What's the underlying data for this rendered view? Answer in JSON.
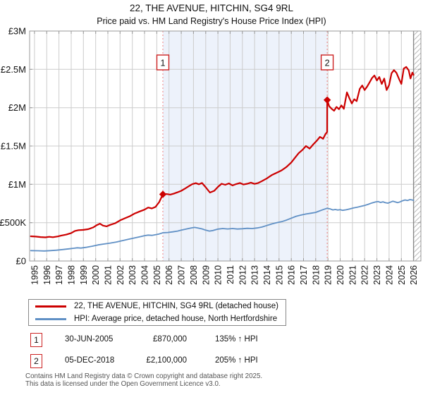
{
  "header": {
    "title": "22, THE AVENUE, HITCHIN, SG4 9RL",
    "subtitle": "Price paid vs. HM Land Registry's House Price Index (HPI)"
  },
  "colors": {
    "red": "#cc0000",
    "blue": "#6090c5",
    "grid": "#cccccc",
    "border": "#999999",
    "shade": "#edf2fb",
    "hatch": "#b8b8b8",
    "hatch_edge": "#8a8a8a",
    "dashed": "#f08080",
    "marker_box": "#cc2222"
  },
  "chart_data": {
    "type": "line",
    "title": "22, THE AVENUE, HITCHIN, SG4 9RL",
    "subtitle": "Price paid vs. HM Land Registry's House Price Index (HPI)",
    "units": "GBP_thousands",
    "x_min": 1994.6,
    "x_max": 2026.6,
    "y_max_k": 3000,
    "grid": true,
    "legend_position": "bottom",
    "x_tick_years": [
      1995,
      1996,
      1997,
      1998,
      1999,
      2000,
      2001,
      2002,
      2003,
      2004,
      2005,
      2006,
      2007,
      2008,
      2009,
      2010,
      2011,
      2012,
      2013,
      2014,
      2015,
      2016,
      2017,
      2018,
      2019,
      2020,
      2021,
      2022,
      2023,
      2024,
      2025,
      2026
    ],
    "y_ticks": [
      {
        "v": 0,
        "label": "£0"
      },
      {
        "v": 500,
        "label": "£500K"
      },
      {
        "v": 1000,
        "label": "£1M"
      },
      {
        "v": 1500,
        "label": "£1.5M"
      },
      {
        "v": 2000,
        "label": "£2M"
      },
      {
        "v": 2500,
        "label": "£2.5M"
      },
      {
        "v": 3000,
        "label": "£3M"
      }
    ],
    "shade": {
      "from": 2005.5,
      "to": 2018.94
    },
    "hatch_from": 2026.0,
    "series": [
      {
        "key": "property-price-line",
        "name": "22, THE AVENUE, HITCHIN, SG4 9RL (detached house)",
        "color": "#cc0000",
        "width": 2.2,
        "points": [
          [
            1994.7,
            322
          ],
          [
            1995.1,
            318
          ],
          [
            1995.5,
            312
          ],
          [
            1995.9,
            308
          ],
          [
            1996.2,
            316
          ],
          [
            1996.5,
            310
          ],
          [
            1996.9,
            320
          ],
          [
            1997.2,
            332
          ],
          [
            1997.6,
            344
          ],
          [
            1998,
            364
          ],
          [
            1998.3,
            392
          ],
          [
            1998.6,
            402
          ],
          [
            1999,
            406
          ],
          [
            1999.4,
            415
          ],
          [
            1999.8,
            438
          ],
          [
            2000.1,
            468
          ],
          [
            2000.35,
            487
          ],
          [
            2000.6,
            462
          ],
          [
            2000.9,
            452
          ],
          [
            2001.2,
            472
          ],
          [
            2001.6,
            492
          ],
          [
            2002,
            530
          ],
          [
            2002.4,
            558
          ],
          [
            2002.8,
            584
          ],
          [
            2003.2,
            620
          ],
          [
            2003.6,
            646
          ],
          [
            2004,
            670
          ],
          [
            2004.3,
            698
          ],
          [
            2004.6,
            686
          ],
          [
            2004.9,
            706
          ],
          [
            2005.2,
            768
          ],
          [
            2005.5,
            870
          ],
          [
            2005.8,
            873
          ],
          [
            2006.1,
            866
          ],
          [
            2006.4,
            880
          ],
          [
            2006.7,
            896
          ],
          [
            2007,
            916
          ],
          [
            2007.3,
            944
          ],
          [
            2007.6,
            974
          ],
          [
            2007.9,
            1002
          ],
          [
            2008.2,
            1016
          ],
          [
            2008.45,
            1000
          ],
          [
            2008.7,
            1018
          ],
          [
            2009,
            962
          ],
          [
            2009.35,
            893
          ],
          [
            2009.7,
            916
          ],
          [
            2010,
            966
          ],
          [
            2010.3,
            1008
          ],
          [
            2010.6,
            994
          ],
          [
            2010.9,
            1012
          ],
          [
            2011.2,
            986
          ],
          [
            2011.5,
            1004
          ],
          [
            2011.8,
            1018
          ],
          [
            2012.1,
            998
          ],
          [
            2012.4,
            1008
          ],
          [
            2012.7,
            1022
          ],
          [
            2013,
            1006
          ],
          [
            2013.3,
            1018
          ],
          [
            2013.6,
            1042
          ],
          [
            2014,
            1078
          ],
          [
            2014.4,
            1120
          ],
          [
            2014.8,
            1150
          ],
          [
            2015.2,
            1182
          ],
          [
            2015.6,
            1226
          ],
          [
            2016,
            1286
          ],
          [
            2016.3,
            1346
          ],
          [
            2016.6,
            1406
          ],
          [
            2016.9,
            1448
          ],
          [
            2017.2,
            1500
          ],
          [
            2017.5,
            1466
          ],
          [
            2017.8,
            1522
          ],
          [
            2018.1,
            1572
          ],
          [
            2018.35,
            1620
          ],
          [
            2018.6,
            1594
          ],
          [
            2018.8,
            1656
          ],
          [
            2018.93,
            1682
          ],
          [
            2018.94,
            2100
          ],
          [
            2019.1,
            2020
          ],
          [
            2019.3,
            1985
          ],
          [
            2019.5,
            1960
          ],
          [
            2019.7,
            2010
          ],
          [
            2019.9,
            1980
          ],
          [
            2020.1,
            2030
          ],
          [
            2020.3,
            1985
          ],
          [
            2020.55,
            2200
          ],
          [
            2020.75,
            2125
          ],
          [
            2020.95,
            2055
          ],
          [
            2021.15,
            2110
          ],
          [
            2021.35,
            2085
          ],
          [
            2021.6,
            2245
          ],
          [
            2021.8,
            2290
          ],
          [
            2022,
            2230
          ],
          [
            2022.2,
            2275
          ],
          [
            2022.4,
            2330
          ],
          [
            2022.6,
            2385
          ],
          [
            2022.8,
            2420
          ],
          [
            2023,
            2355
          ],
          [
            2023.2,
            2400
          ],
          [
            2023.4,
            2310
          ],
          [
            2023.6,
            2380
          ],
          [
            2023.8,
            2230
          ],
          [
            2024,
            2295
          ],
          [
            2024.2,
            2450
          ],
          [
            2024.4,
            2490
          ],
          [
            2024.6,
            2455
          ],
          [
            2024.8,
            2380
          ],
          [
            2025,
            2310
          ],
          [
            2025.2,
            2510
          ],
          [
            2025.4,
            2532
          ],
          [
            2025.6,
            2488
          ],
          [
            2025.75,
            2382
          ],
          [
            2025.9,
            2458
          ],
          [
            2026,
            2428
          ]
        ]
      },
      {
        "key": "hpi-line",
        "name": "HPI: Average price, detached house, North Hertfordshire",
        "color": "#6090c5",
        "width": 1.8,
        "points": [
          [
            1994.7,
            135
          ],
          [
            1995.3,
            133
          ],
          [
            1995.8,
            131
          ],
          [
            1996.3,
            135
          ],
          [
            1996.8,
            141
          ],
          [
            1997.3,
            149
          ],
          [
            1997.8,
            158
          ],
          [
            1998.2,
            166
          ],
          [
            1998.5,
            172
          ],
          [
            1998.8,
            168
          ],
          [
            1999.2,
            178
          ],
          [
            1999.7,
            192
          ],
          [
            2000.2,
            210
          ],
          [
            2000.7,
            222
          ],
          [
            2001.2,
            234
          ],
          [
            2001.7,
            248
          ],
          [
            2002.2,
            266
          ],
          [
            2002.7,
            284
          ],
          [
            2003.2,
            302
          ],
          [
            2003.7,
            318
          ],
          [
            2004,
            330
          ],
          [
            2004.3,
            338
          ],
          [
            2004.6,
            334
          ],
          [
            2004.9,
            342
          ],
          [
            2005.2,
            352
          ],
          [
            2005.5,
            368
          ],
          [
            2005.9,
            372
          ],
          [
            2006.3,
            380
          ],
          [
            2006.7,
            390
          ],
          [
            2007,
            402
          ],
          [
            2007.4,
            416
          ],
          [
            2007.8,
            430
          ],
          [
            2008.1,
            438
          ],
          [
            2008.4,
            429
          ],
          [
            2008.7,
            419
          ],
          [
            2009,
            402
          ],
          [
            2009.3,
            390
          ],
          [
            2009.6,
            398
          ],
          [
            2010,
            416
          ],
          [
            2010.4,
            423
          ],
          [
            2010.8,
            418
          ],
          [
            2011.2,
            423
          ],
          [
            2011.6,
            417
          ],
          [
            2012,
            421
          ],
          [
            2012.4,
            426
          ],
          [
            2012.8,
            423
          ],
          [
            2013.2,
            431
          ],
          [
            2013.6,
            443
          ],
          [
            2014,
            463
          ],
          [
            2014.4,
            483
          ],
          [
            2014.8,
            499
          ],
          [
            2015.2,
            513
          ],
          [
            2015.6,
            533
          ],
          [
            2016,
            559
          ],
          [
            2016.4,
            583
          ],
          [
            2016.8,
            599
          ],
          [
            2017.2,
            613
          ],
          [
            2017.6,
            623
          ],
          [
            2018,
            634
          ],
          [
            2018.3,
            652
          ],
          [
            2018.6,
            670
          ],
          [
            2018.94,
            688
          ],
          [
            2019.2,
            678
          ],
          [
            2019.4,
            666
          ],
          [
            2019.6,
            672
          ],
          [
            2019.8,
            664
          ],
          [
            2020,
            670
          ],
          [
            2020.2,
            661
          ],
          [
            2020.5,
            668
          ],
          [
            2020.8,
            680
          ],
          [
            2021.1,
            692
          ],
          [
            2021.4,
            701
          ],
          [
            2021.7,
            713
          ],
          [
            2022,
            724
          ],
          [
            2022.3,
            740
          ],
          [
            2022.6,
            757
          ],
          [
            2022.9,
            770
          ],
          [
            2023.1,
            776
          ],
          [
            2023.3,
            764
          ],
          [
            2023.5,
            772
          ],
          [
            2023.7,
            760
          ],
          [
            2023.9,
            755
          ],
          [
            2024.1,
            767
          ],
          [
            2024.3,
            779
          ],
          [
            2024.5,
            770
          ],
          [
            2024.7,
            761
          ],
          [
            2024.9,
            771
          ],
          [
            2025.1,
            786
          ],
          [
            2025.3,
            796
          ],
          [
            2025.5,
            789
          ],
          [
            2025.7,
            801
          ],
          [
            2025.85,
            797
          ],
          [
            2026,
            791
          ]
        ]
      }
    ]
  },
  "transactions": [
    {
      "num": "1",
      "date": "30-JUN-2005",
      "price": "£870,000",
      "hpi": "135% ↑ HPI",
      "year": 2005.5,
      "value_k": 870
    },
    {
      "num": "2",
      "date": "05-DEC-2018",
      "price": "£2,100,000",
      "hpi": "205% ↑ HPI",
      "year": 2018.94,
      "value_k": 2100
    }
  ],
  "footer": {
    "line1": "Contains HM Land Registry data © Crown copyright and database right 2025.",
    "line2": "This data is licensed under the Open Government Licence v3.0."
  }
}
